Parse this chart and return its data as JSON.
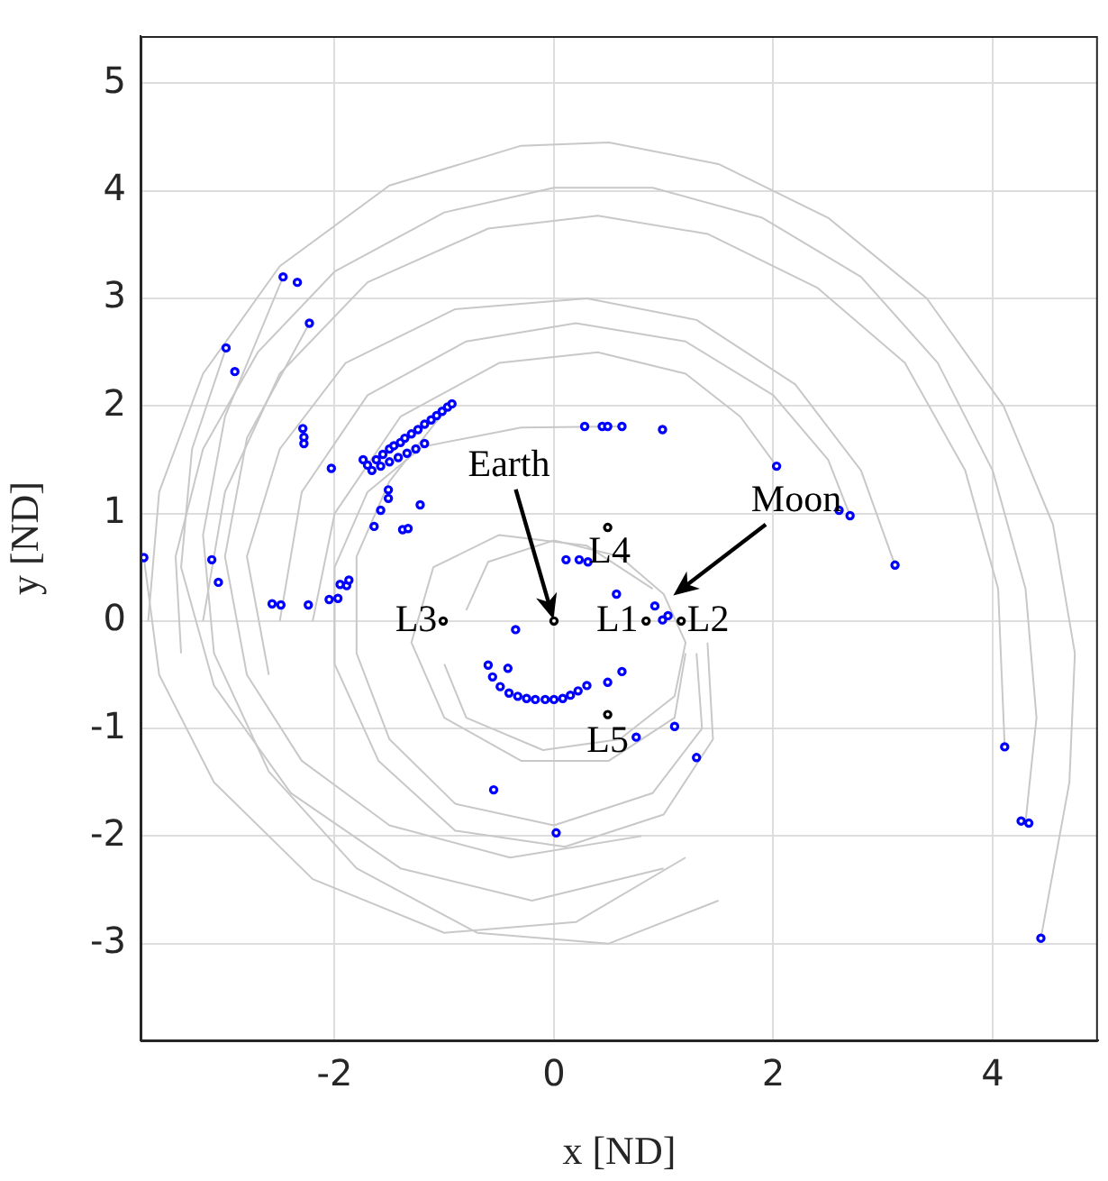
{
  "chart_data": {
    "type": "scatter",
    "xlabel": "x [ND]",
    "ylabel": "y [ND]",
    "xlim": [
      -3.77,
      4.96
    ],
    "xticks": [
      -2,
      0,
      2,
      4
    ],
    "ylim": [
      -3.9,
      5.44
    ],
    "yticks": [
      -3,
      -2,
      -1,
      0,
      1,
      2,
      3,
      4,
      5
    ],
    "grid": true,
    "series": [
      {
        "type": "line",
        "color": "#c8c8c8",
        "x": [
          -3.7,
          -3.6,
          -3.2,
          -2.5,
          -1.5,
          -0.3,
          0.5,
          1.5,
          2.5,
          3.4,
          4.1,
          4.55,
          4.75,
          4.7,
          4.44
        ],
        "values": [
          0.0,
          1.2,
          2.3,
          3.3,
          4.05,
          4.42,
          4.45,
          4.25,
          3.75,
          3.0,
          2.0,
          0.9,
          -0.3,
          -1.5,
          -2.95
        ]
      },
      {
        "type": "line",
        "color": "#c8c8c8",
        "x": [
          -3.4,
          -3.45,
          -3.2,
          -2.7,
          -2.0,
          -1.0,
          0.0,
          0.9,
          1.9,
          2.8,
          3.5,
          4.0,
          4.3,
          4.4,
          4.3
        ],
        "values": [
          -0.3,
          0.6,
          1.6,
          2.5,
          3.25,
          3.8,
          4.03,
          4.03,
          3.75,
          3.2,
          2.4,
          1.4,
          0.3,
          -0.9,
          -1.87
        ]
      },
      {
        "type": "line",
        "color": "#c8c8c8",
        "x": [
          -3.2,
          -3.0,
          -2.5,
          -1.7,
          -0.6,
          0.4,
          1.4,
          2.4,
          3.2,
          3.75,
          4.05,
          4.11
        ],
        "values": [
          0.0,
          1.2,
          2.3,
          3.15,
          3.65,
          3.77,
          3.6,
          3.1,
          2.4,
          1.4,
          0.3,
          -1.17
        ]
      },
      {
        "type": "line",
        "color": "#c8c8c8",
        "x": [
          -2.6,
          -2.8,
          -2.5,
          -1.9,
          -0.9,
          0.3,
          1.3,
          2.2,
          2.8,
          3.11
        ],
        "values": [
          -0.5,
          0.6,
          1.6,
          2.4,
          2.9,
          3.0,
          2.8,
          2.2,
          1.4,
          0.52
        ]
      },
      {
        "type": "line",
        "color": "#c8c8c8",
        "x": [
          -2.5,
          -2.3,
          -1.7,
          -0.8,
          0.2,
          1.2,
          2.0,
          2.5,
          2.7
        ],
        "values": [
          0.0,
          1.2,
          2.1,
          2.6,
          2.77,
          2.6,
          2.1,
          1.5,
          0.98
        ]
      },
      {
        "type": "line",
        "color": "#c8c8c8",
        "x": [
          -2.2,
          -2.0,
          -1.4,
          -0.5,
          0.4,
          1.2,
          1.7,
          2.03
        ],
        "values": [
          0.0,
          1.0,
          1.9,
          2.4,
          2.5,
          2.3,
          1.9,
          1.44
        ]
      },
      {
        "type": "line",
        "color": "#c8c8c8",
        "x": [
          1.5,
          0.5,
          -0.7,
          -1.8,
          -2.6,
          -3.1,
          -3.2,
          -3.0,
          -2.47
        ],
        "values": [
          -2.6,
          -3.0,
          -2.9,
          -2.3,
          -1.4,
          -0.3,
          0.8,
          1.9,
          3.2
        ]
      },
      {
        "type": "line",
        "color": "#c8c8c8",
        "x": [
          1.0,
          -0.2,
          -1.4,
          -2.4,
          -3.1,
          -3.4,
          -3.3,
          -2.99
        ],
        "values": [
          -2.3,
          -2.6,
          -2.3,
          -1.6,
          -0.6,
          0.5,
          1.6,
          2.54
        ]
      },
      {
        "type": "line",
        "color": "#c8c8c8",
        "x": [
          1.2,
          0.2,
          -1.0,
          -2.2,
          -3.1,
          -3.6,
          -3.74
        ],
        "values": [
          -2.2,
          -2.8,
          -2.9,
          -2.4,
          -1.5,
          -0.5,
          0.59
        ]
      },
      {
        "type": "line",
        "color": "#c8c8c8",
        "x": [
          0.8,
          -0.4,
          -1.5,
          -2.3,
          -2.8,
          -3.0,
          -2.8,
          -2.23
        ],
        "values": [
          -2.0,
          -2.2,
          -1.9,
          -1.3,
          -0.5,
          0.6,
          1.7,
          2.77
        ]
      },
      {
        "type": "line",
        "color": "#c8c8c8",
        "x": [
          -0.8,
          -0.6,
          0.0,
          0.6,
          1.0,
          1.2,
          1.1,
          0.6,
          -0.1,
          -0.8,
          -1.0
        ],
        "values": [
          0.1,
          0.55,
          0.75,
          0.6,
          0.25,
          -0.2,
          -0.7,
          -1.1,
          -1.2,
          -0.9,
          -0.4
        ]
      },
      {
        "type": "line",
        "color": "#c8c8c8",
        "x": [
          1.3,
          1.35,
          0.9,
          0.0,
          -0.9,
          -1.5,
          -1.8,
          -1.8,
          -1.5,
          -0.93
        ],
        "values": [
          -0.3,
          -1.0,
          -1.6,
          -1.9,
          -1.7,
          -1.1,
          -0.3,
          0.6,
          1.3,
          2.04
        ]
      },
      {
        "type": "line",
        "color": "#c8c8c8",
        "x": [
          1.4,
          1.45,
          1.0,
          0.1,
          -0.9,
          -1.6,
          -2.0,
          -2.0,
          -1.7,
          -1.2,
          -0.3,
          0.62
        ],
        "values": [
          -0.2,
          -1.1,
          -1.8,
          -2.1,
          -1.95,
          -1.3,
          -0.4,
          0.5,
          1.2,
          1.62,
          1.8,
          1.81
        ]
      },
      {
        "type": "line",
        "color": "#c8c8c8",
        "x": [
          1.2,
          1.1,
          0.5,
          -0.3,
          -1.0,
          -1.3,
          -1.1,
          -0.5,
          0.3,
          0.9
        ],
        "values": [
          -0.3,
          -0.9,
          -1.3,
          -1.3,
          -0.9,
          -0.2,
          0.5,
          0.8,
          0.7,
          0.3
        ]
      },
      {
        "type": "scatter",
        "color": "#0000ff",
        "x": [
          -2.47,
          -2.34,
          -2.23,
          -2.99,
          -2.91,
          -2.29,
          -2.28,
          -2.28,
          -2.03,
          -1.74,
          -1.7,
          -1.62,
          -1.56,
          -1.5,
          -1.46,
          -1.4,
          -1.36,
          -1.3,
          -1.24,
          -1.18,
          -1.12,
          -1.07,
          -1.02,
          -0.97,
          -0.93,
          -1.66,
          -1.58,
          -1.5,
          -1.42,
          -1.34,
          -1.26,
          -1.18,
          -1.51,
          -1.51,
          -1.58,
          -1.64,
          -1.22,
          -1.38,
          -1.33,
          -3.74,
          -3.12,
          -3.06,
          -2.57,
          -2.49,
          -2.24,
          -2.05,
          -1.97,
          -1.95,
          -1.89,
          -1.87,
          0.28,
          0.44,
          0.49,
          0.62,
          0.99,
          2.03,
          2.6,
          2.7,
          3.11,
          4.11,
          4.26,
          4.33,
          4.44,
          0.11,
          0.23,
          0.31,
          0.57,
          0.92,
          0.99,
          1.04,
          -0.35,
          0.62,
          0.49,
          -0.42,
          0.75,
          1.1,
          1.3,
          -0.55,
          0.02,
          -0.6,
          -0.56,
          -0.49,
          -0.41,
          -0.33,
          -0.25,
          -0.17,
          -0.08,
          0.0,
          0.08,
          0.15,
          0.22,
          0.3
        ],
        "values": [
          3.2,
          3.15,
          2.77,
          2.54,
          2.32,
          1.79,
          1.71,
          1.65,
          1.42,
          1.5,
          1.45,
          1.5,
          1.55,
          1.6,
          1.63,
          1.66,
          1.7,
          1.74,
          1.78,
          1.83,
          1.87,
          1.91,
          1.95,
          1.99,
          2.02,
          1.4,
          1.44,
          1.48,
          1.52,
          1.56,
          1.6,
          1.65,
          1.22,
          1.14,
          1.03,
          0.88,
          1.08,
          0.85,
          0.86,
          0.59,
          0.57,
          0.36,
          0.16,
          0.15,
          0.15,
          0.2,
          0.21,
          0.34,
          0.33,
          0.38,
          1.81,
          1.81,
          1.81,
          1.81,
          1.78,
          1.44,
          1.03,
          0.98,
          0.52,
          -1.17,
          -1.86,
          -1.88,
          -2.95,
          0.57,
          0.57,
          0.55,
          0.25,
          0.14,
          0.01,
          0.05,
          -0.08,
          -0.47,
          -0.57,
          -0.44,
          -1.08,
          -0.98,
          -1.27,
          -1.57,
          -1.97,
          -0.41,
          -0.52,
          -0.61,
          -0.67,
          -0.7,
          -0.72,
          -0.73,
          -0.73,
          -0.73,
          -0.72,
          -0.69,
          -0.65,
          -0.6
        ]
      },
      {
        "type": "scatter",
        "color": "#000000",
        "x": [
          0.84,
          1.16,
          -1.01,
          0.49,
          0.49
        ],
        "values": [
          0,
          0,
          0,
          0.87,
          -0.87
        ]
      },
      {
        "type": "scatter",
        "color": "#000000",
        "x": [
          0
        ],
        "values": [
          0
        ]
      }
    ],
    "annotations": [
      {
        "text": "Earth",
        "x": 0,
        "y": 0
      },
      "Moon",
      {
        "text": "L1",
        "x": 0.84,
        "y": 0
      },
      {
        "text": "L2",
        "x": 1.16,
        "y": 0
      },
      {
        "text": "L3",
        "x": -1.01,
        "y": 0
      },
      {
        "text": "L4",
        "x": 0.49,
        "y": 0.87
      },
      {
        "text": "L5",
        "x": 0.49,
        "y": -0.87
      }
    ]
  }
}
